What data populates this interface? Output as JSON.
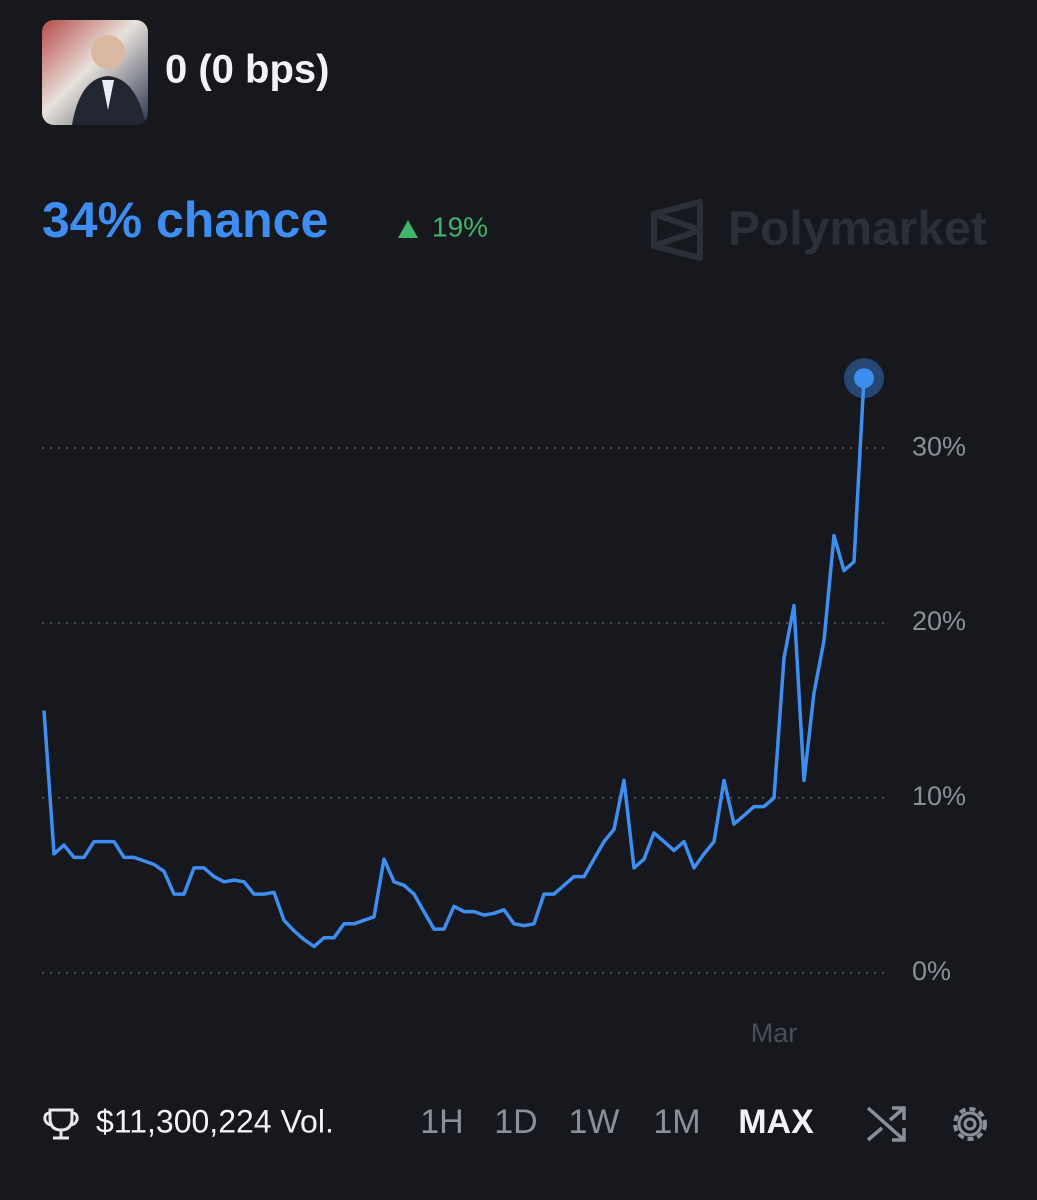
{
  "header": {
    "title": "0 (0 bps)"
  },
  "summary": {
    "chance": "34% chance",
    "change": "19%"
  },
  "brand": "Polymarket",
  "chart_data": {
    "type": "line",
    "categories": [
      null,
      null,
      null,
      null,
      null,
      null,
      null,
      null,
      null,
      null,
      null,
      null,
      null,
      null,
      null,
      null,
      null,
      null,
      null,
      null,
      null,
      null,
      null,
      null,
      null,
      null,
      null,
      null,
      null,
      null,
      null,
      null,
      null,
      null,
      null,
      null,
      null,
      null,
      null,
      null,
      null,
      null,
      null,
      null,
      null,
      null,
      null,
      null,
      null,
      null,
      null,
      null,
      null,
      null,
      null,
      null,
      null,
      null,
      null,
      null,
      null,
      null,
      null,
      null,
      null,
      null,
      null,
      null,
      null,
      null,
      null,
      null,
      null,
      "Mar",
      null,
      null,
      null,
      null,
      null,
      null,
      null,
      null,
      null
    ],
    "values": [
      15,
      6.8,
      7.3,
      6.6,
      6.6,
      7.5,
      7.5,
      7.5,
      6.6,
      6.6,
      6.4,
      6.2,
      5.8,
      4.5,
      4.5,
      6,
      6,
      5.5,
      5.2,
      5.3,
      5.2,
      4.5,
      4.5,
      4.6,
      3,
      2.4,
      1.9,
      1.5,
      2,
      2,
      2.8,
      2.8,
      3,
      3.2,
      6.5,
      5.2,
      5,
      4.5,
      3.5,
      2.5,
      2.5,
      3.8,
      3.5,
      3.5,
      3.3,
      3.4,
      3.6,
      2.8,
      2.7,
      2.8,
      4.5,
      4.5,
      5,
      5.5,
      5.5,
      6.5,
      7.5,
      8.2,
      11,
      6,
      6.5,
      8,
      7.5,
      7,
      7.5,
      6,
      6.8,
      7.5,
      11,
      8.5,
      9,
      9.5,
      9.5,
      10,
      18,
      21,
      11,
      16,
      19,
      25,
      23,
      23.5,
      34
    ],
    "color": "#3d8ef0",
    "ylim": [
      -1.5,
      35.5
    ],
    "yticks": [
      {
        "value": 0,
        "label": "0%"
      },
      {
        "value": 10,
        "label": "10%"
      },
      {
        "value": 20,
        "label": "20%"
      },
      {
        "value": 30,
        "label": "30%"
      }
    ],
    "grid": true
  },
  "footer": {
    "volume": "$11,300,224 Vol.",
    "ranges": [
      "1H",
      "1D",
      "1W",
      "1M",
      "MAX"
    ]
  }
}
